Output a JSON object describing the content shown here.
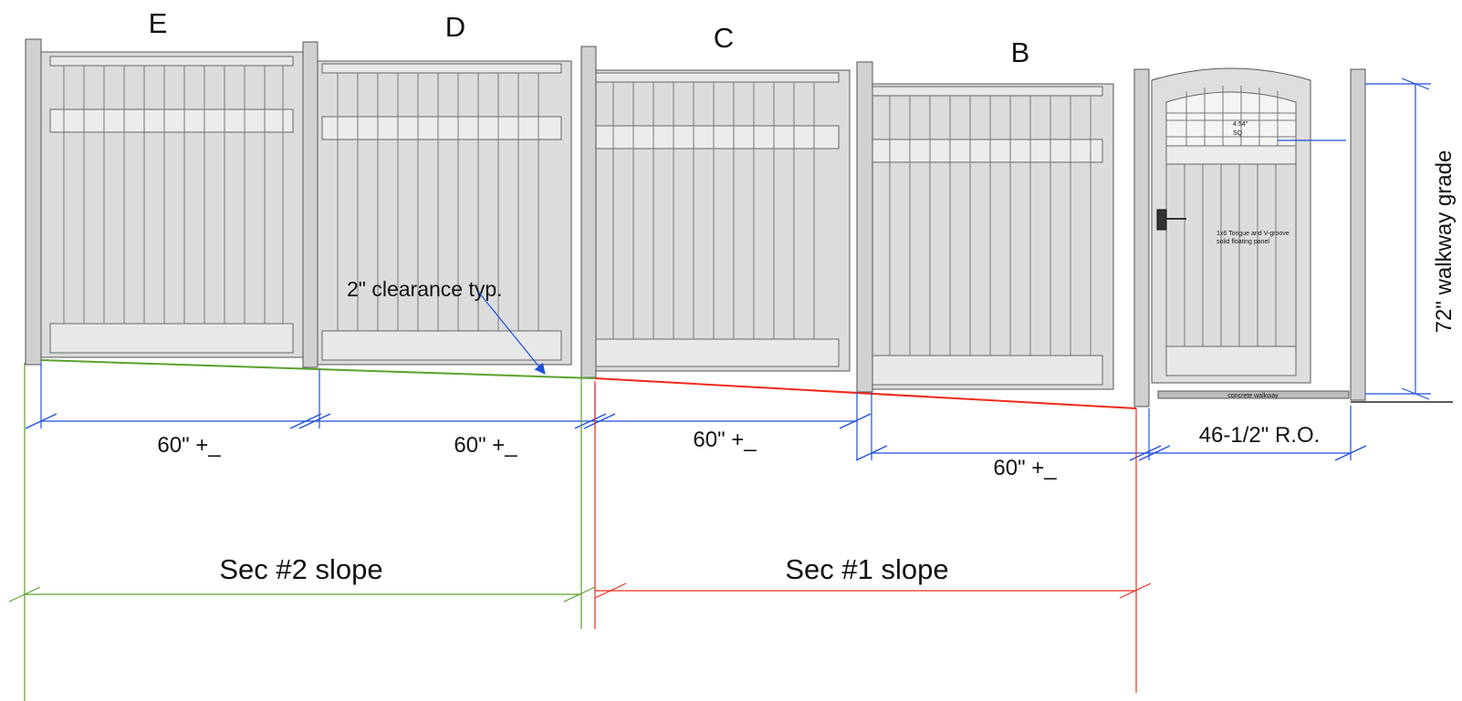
{
  "panels": [
    {
      "id": "E",
      "label": "E"
    },
    {
      "id": "D",
      "label": "D"
    },
    {
      "id": "C",
      "label": "C"
    },
    {
      "id": "B",
      "label": "B"
    }
  ],
  "gate": {
    "window_label_line1": "4.54\"",
    "window_label_line2": "SQ",
    "panel_note_line1": "1x6 Tongue and V-groove",
    "panel_note_line2": "solid floating panel",
    "walkway_label": "concrete walkway"
  },
  "annotations": {
    "clearance": "2\" clearance typ.",
    "height": "72\" walkway grade"
  },
  "dimensions": {
    "panel_e": "60\" +_",
    "panel_d": "60\" +_",
    "panel_c": "60\" +_",
    "panel_b": "60\" +_",
    "gate_opening": "46-1/2\" R.O."
  },
  "slopes": {
    "sec2": "Sec #2 slope",
    "sec1": "Sec #1 slope"
  },
  "colors": {
    "fence_fill": "#dcdcdc",
    "fence_stroke": "#555555",
    "dimension_blue": "#1f4fe0",
    "sec2_green": "#5aa02c",
    "sec1_red": "#ee2a1a"
  }
}
